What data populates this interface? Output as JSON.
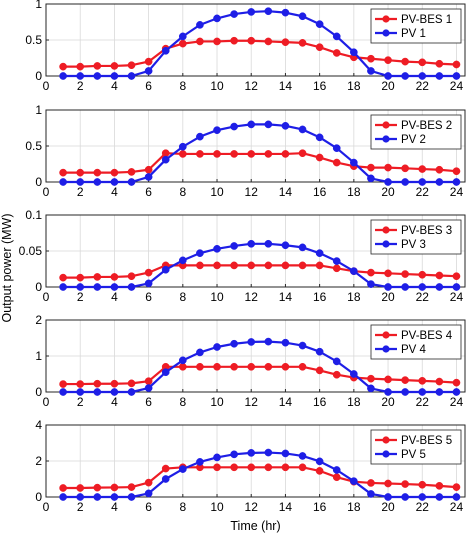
{
  "figure": {
    "ylabel": "Output power (MW)",
    "xlabel": "Time (hr)"
  },
  "colors": {
    "pvbes": "#ee1c24",
    "pv": "#1e1ee6",
    "grid": "#d9d9d9",
    "axis": "#262626"
  },
  "chart_data": [
    {
      "type": "line",
      "x": [
        1,
        2,
        3,
        4,
        5,
        6,
        7,
        8,
        9,
        10,
        11,
        12,
        13,
        14,
        15,
        16,
        17,
        18,
        19,
        20,
        21,
        22,
        23,
        24
      ],
      "xlim": [
        0,
        24.5
      ],
      "xticks": [
        0,
        2,
        4,
        6,
        8,
        10,
        12,
        14,
        16,
        18,
        20,
        22,
        24
      ],
      "ylim": [
        0,
        1
      ],
      "yticks": [
        0,
        0.5,
        1
      ],
      "ytick_labels": [
        "0",
        "0.5",
        "1"
      ],
      "legend": "top-right",
      "grid": true,
      "series": [
        {
          "name": "PV-BES 1",
          "color": "#ee1c24",
          "values": [
            0.13,
            0.13,
            0.14,
            0.14,
            0.15,
            0.2,
            0.38,
            0.45,
            0.48,
            0.48,
            0.49,
            0.49,
            0.48,
            0.47,
            0.46,
            0.4,
            0.32,
            0.26,
            0.24,
            0.22,
            0.2,
            0.19,
            0.17,
            0.16
          ]
        },
        {
          "name": "PV 1",
          "color": "#1e1ee6",
          "values": [
            0,
            0,
            0,
            0,
            0,
            0.07,
            0.35,
            0.55,
            0.71,
            0.8,
            0.86,
            0.89,
            0.9,
            0.88,
            0.83,
            0.72,
            0.55,
            0.33,
            0.07,
            0,
            0,
            0,
            0,
            0
          ]
        }
      ]
    },
    {
      "type": "line",
      "x": [
        1,
        2,
        3,
        4,
        5,
        6,
        7,
        8,
        9,
        10,
        11,
        12,
        13,
        14,
        15,
        16,
        17,
        18,
        19,
        20,
        21,
        22,
        23,
        24
      ],
      "xlim": [
        0,
        24.5
      ],
      "xticks": [
        0,
        2,
        4,
        6,
        8,
        10,
        12,
        14,
        16,
        18,
        20,
        22,
        24
      ],
      "ylim": [
        0,
        1
      ],
      "yticks": [
        0,
        0.5,
        1
      ],
      "ytick_labels": [
        "0",
        "0.5",
        "1"
      ],
      "legend": "top-right",
      "grid": true,
      "series": [
        {
          "name": "PV-BES 2",
          "color": "#ee1c24",
          "values": [
            0.13,
            0.13,
            0.13,
            0.13,
            0.14,
            0.17,
            0.4,
            0.39,
            0.39,
            0.39,
            0.39,
            0.39,
            0.39,
            0.39,
            0.4,
            0.34,
            0.27,
            0.22,
            0.2,
            0.2,
            0.19,
            0.18,
            0.17,
            0.15
          ]
        },
        {
          "name": "PV 2",
          "color": "#1e1ee6",
          "values": [
            0,
            0,
            0,
            0,
            0,
            0.07,
            0.31,
            0.49,
            0.63,
            0.72,
            0.77,
            0.8,
            0.8,
            0.78,
            0.73,
            0.62,
            0.47,
            0.27,
            0.05,
            0,
            0,
            0,
            0,
            0
          ]
        }
      ]
    },
    {
      "type": "line",
      "x": [
        1,
        2,
        3,
        4,
        5,
        6,
        7,
        8,
        9,
        10,
        11,
        12,
        13,
        14,
        15,
        16,
        17,
        18,
        19,
        20,
        21,
        22,
        23,
        24
      ],
      "xlim": [
        0,
        24.5
      ],
      "xticks": [
        0,
        2,
        4,
        6,
        8,
        10,
        12,
        14,
        16,
        18,
        20,
        22,
        24
      ],
      "ylim": [
        0,
        0.1
      ],
      "yticks": [
        0,
        0.05,
        0.1
      ],
      "ytick_labels": [
        "0",
        "0.05",
        "0.1"
      ],
      "legend": "top-right",
      "grid": true,
      "series": [
        {
          "name": "PV-BES 3",
          "color": "#ee1c24",
          "values": [
            0.013,
            0.013,
            0.014,
            0.014,
            0.015,
            0.02,
            0.03,
            0.03,
            0.03,
            0.03,
            0.03,
            0.03,
            0.03,
            0.03,
            0.03,
            0.03,
            0.026,
            0.022,
            0.02,
            0.019,
            0.018,
            0.017,
            0.016,
            0.015
          ]
        },
        {
          "name": "PV 3",
          "color": "#1e1ee6",
          "values": [
            0,
            0,
            0,
            0,
            0,
            0.005,
            0.024,
            0.037,
            0.047,
            0.053,
            0.057,
            0.06,
            0.06,
            0.058,
            0.055,
            0.047,
            0.036,
            0.022,
            0.004,
            0,
            0,
            0,
            0,
            0
          ]
        }
      ]
    },
    {
      "type": "line",
      "x": [
        1,
        2,
        3,
        4,
        5,
        6,
        7,
        8,
        9,
        10,
        11,
        12,
        13,
        14,
        15,
        16,
        17,
        18,
        19,
        20,
        21,
        22,
        23,
        24
      ],
      "xlim": [
        0,
        24.5
      ],
      "xticks": [
        0,
        2,
        4,
        6,
        8,
        10,
        12,
        14,
        16,
        18,
        20,
        22,
        24
      ],
      "ylim": [
        0,
        2
      ],
      "yticks": [
        0,
        1,
        2
      ],
      "ytick_labels": [
        "0",
        "1",
        "2"
      ],
      "legend": "top-right",
      "grid": true,
      "series": [
        {
          "name": "PV-BES 4",
          "color": "#ee1c24",
          "values": [
            0.22,
            0.22,
            0.23,
            0.23,
            0.24,
            0.3,
            0.7,
            0.7,
            0.7,
            0.7,
            0.7,
            0.7,
            0.7,
            0.7,
            0.7,
            0.6,
            0.48,
            0.4,
            0.37,
            0.35,
            0.33,
            0.31,
            0.29,
            0.26
          ]
        },
        {
          "name": "PV 4",
          "color": "#1e1ee6",
          "values": [
            0,
            0,
            0,
            0,
            0,
            0.11,
            0.55,
            0.88,
            1.1,
            1.25,
            1.34,
            1.39,
            1.4,
            1.37,
            1.29,
            1.12,
            0.85,
            0.5,
            0.1,
            0,
            0,
            0,
            0,
            0
          ]
        }
      ]
    },
    {
      "type": "line",
      "x": [
        1,
        2,
        3,
        4,
        5,
        6,
        7,
        8,
        9,
        10,
        11,
        12,
        13,
        14,
        15,
        16,
        17,
        18,
        19,
        20,
        21,
        22,
        23,
        24
      ],
      "xlim": [
        0,
        24.5
      ],
      "xticks": [
        0,
        2,
        4,
        6,
        8,
        10,
        12,
        14,
        16,
        18,
        20,
        22,
        24
      ],
      "ylim": [
        0,
        4
      ],
      "yticks": [
        0,
        2,
        4
      ],
      "ytick_labels": [
        "0",
        "2",
        "4"
      ],
      "legend": "top-right",
      "grid": true,
      "series": [
        {
          "name": "PV-BES 5",
          "color": "#ee1c24",
          "values": [
            0.5,
            0.5,
            0.52,
            0.53,
            0.55,
            0.8,
            1.58,
            1.65,
            1.65,
            1.65,
            1.65,
            1.65,
            1.65,
            1.65,
            1.65,
            1.45,
            1.1,
            0.85,
            0.78,
            0.75,
            0.72,
            0.68,
            0.62,
            0.55
          ]
        },
        {
          "name": "PV 5",
          "color": "#1e1ee6",
          "values": [
            0,
            0,
            0,
            0,
            0,
            0.2,
            1.0,
            1.55,
            1.95,
            2.2,
            2.37,
            2.45,
            2.47,
            2.42,
            2.28,
            1.98,
            1.5,
            0.88,
            0.17,
            0,
            0,
            0,
            0,
            0
          ]
        }
      ]
    }
  ]
}
